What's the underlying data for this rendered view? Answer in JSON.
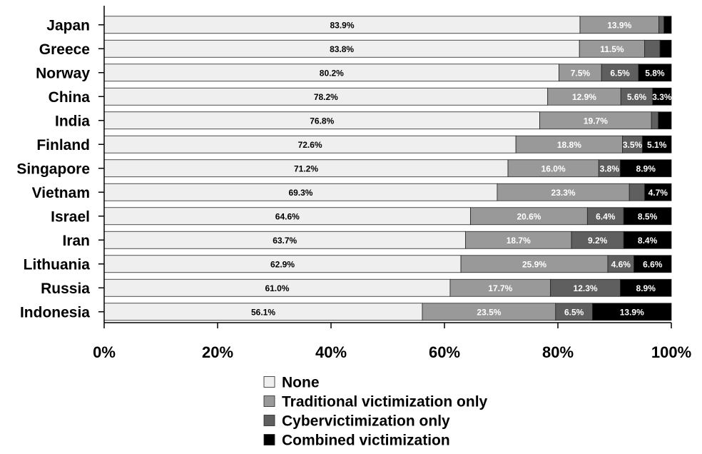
{
  "chart_data": {
    "type": "bar",
    "orientation": "horizontal",
    "stacked": true,
    "title": "",
    "xlabel": "",
    "ylabel": "",
    "xlim": [
      0,
      100
    ],
    "xticks": [
      "0%",
      "20%",
      "40%",
      "60%",
      "80%",
      "100%"
    ],
    "grid": false,
    "legend_position": "bottom",
    "categories": [
      "Japan",
      "Greece",
      "Norway",
      "China",
      "India",
      "Finland",
      "Singapore",
      "Vietnam",
      "Israel",
      "Iran",
      "Lithuania",
      "Russia",
      "Indonesia"
    ],
    "series": [
      {
        "name": "None",
        "color": "#efefef",
        "label_color": "#000000",
        "values": [
          83.9,
          83.8,
          80.2,
          78.2,
          76.8,
          72.6,
          71.2,
          69.3,
          64.6,
          63.7,
          62.9,
          61.0,
          56.1
        ],
        "labels": [
          "83.9%",
          "83.8%",
          "80.2%",
          "78.2%",
          "76.8%",
          "72.6%",
          "71.2%",
          "69.3%",
          "64.6%",
          "63.7%",
          "62.9%",
          "61.0%",
          "56.1%"
        ]
      },
      {
        "name": "Traditional victimization only",
        "color": "#999999",
        "label_color": "#ffffff",
        "values": [
          13.9,
          11.5,
          7.5,
          12.9,
          19.7,
          18.8,
          16.0,
          23.3,
          20.6,
          18.7,
          25.9,
          17.7,
          23.5
        ],
        "labels": [
          "13.9%",
          "11.5%",
          "7.5%",
          "12.9%",
          "19.7%",
          "18.8%",
          "16.0%",
          "23.3%",
          "20.6%",
          "18.7%",
          "25.9%",
          "17.7%",
          "23.5%"
        ]
      },
      {
        "name": "Cybervictimization only",
        "color": "#5f5f5f",
        "label_color": "#ffffff",
        "values": [
          0.9,
          2.7,
          6.5,
          5.6,
          1.2,
          3.5,
          3.8,
          2.7,
          6.4,
          9.2,
          4.6,
          12.3,
          6.5
        ],
        "labels": [
          "",
          "",
          "6.5%",
          "5.6%",
          "",
          "3.5%",
          "3.8%",
          "",
          "6.4%",
          "9.2%",
          "4.6%",
          "12.3%",
          "6.5%"
        ]
      },
      {
        "name": "Combined victimization",
        "color": "#000000",
        "label_color": "#ffffff",
        "values": [
          1.3,
          2.0,
          5.8,
          3.3,
          2.3,
          5.1,
          8.9,
          4.7,
          8.5,
          8.4,
          6.6,
          8.9,
          13.9
        ],
        "labels": [
          "",
          "",
          "5.8%",
          "3.3%",
          "",
          "5.1%",
          "8.9%",
          "4.7%",
          "8.5%",
          "8.4%",
          "6.6%",
          "8.9%",
          "13.9%"
        ]
      }
    ]
  }
}
